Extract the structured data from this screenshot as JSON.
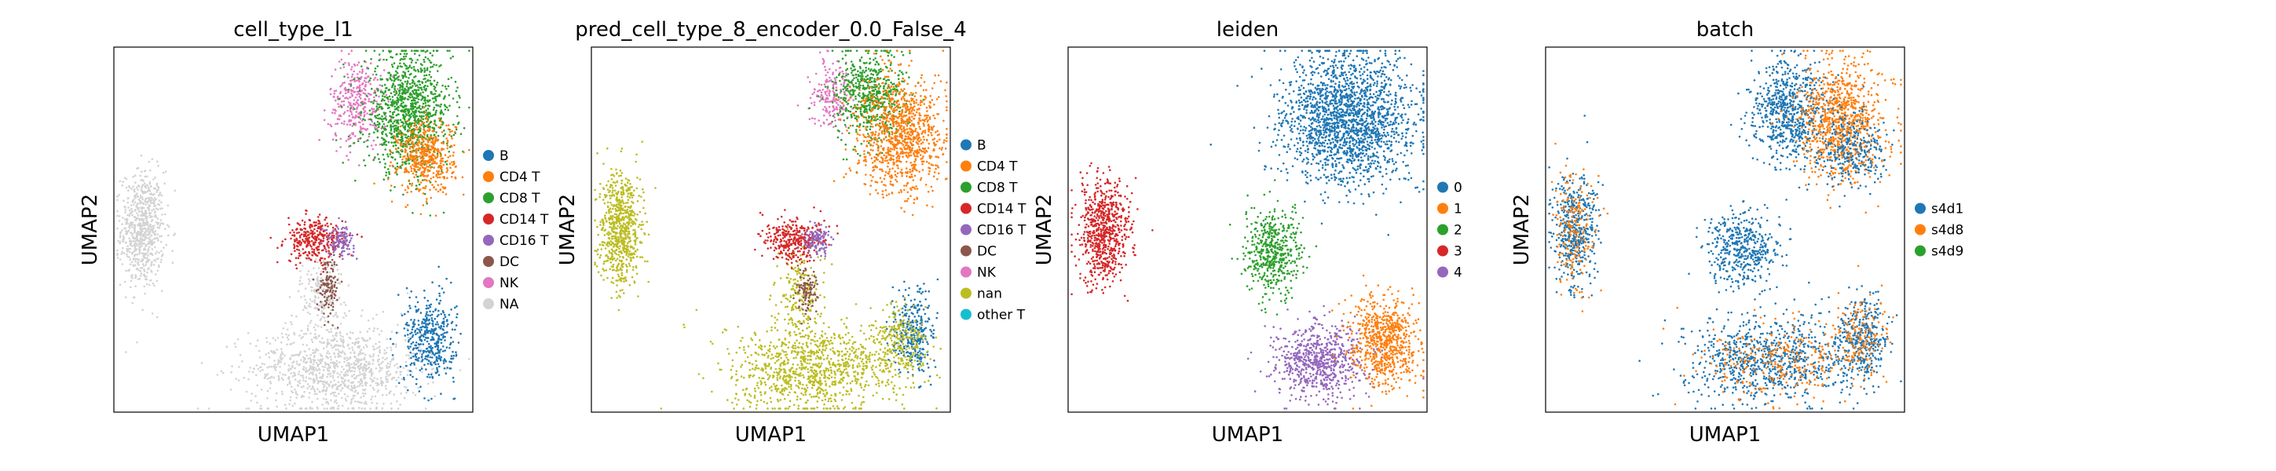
{
  "figure": {
    "legend_text_color": "#000000"
  },
  "chart_data": [
    {
      "type": "scatter",
      "title": "cell_type_l1",
      "xlabel": "UMAP1",
      "ylabel": "UMAP2",
      "legend": {
        "placement": "right-outside",
        "entries": [
          {
            "label": "B",
            "color": "#1f77b4"
          },
          {
            "label": "CD4 T",
            "color": "#ff7f0e"
          },
          {
            "label": "CD8 T",
            "color": "#2ca02c"
          },
          {
            "label": "CD14 T",
            "color": "#d62728"
          },
          {
            "label": "CD16 T",
            "color": "#9467bd"
          },
          {
            "label": "DC",
            "color": "#8c564b"
          },
          {
            "label": "NK",
            "color": "#e377c2"
          },
          {
            "label": "NA",
            "color": "#d3d3d3"
          }
        ]
      },
      "clusters": [
        {
          "label": "NA",
          "x": 0.08,
          "y": 0.5,
          "sx": 0.03,
          "sy": 0.08,
          "n": 700
        },
        {
          "label": "NA",
          "x": 0.62,
          "y": 0.12,
          "sx": 0.12,
          "sy": 0.06,
          "n": 1000
        },
        {
          "label": "NA",
          "x": 0.58,
          "y": 0.33,
          "sx": 0.03,
          "sy": 0.06,
          "n": 200
        },
        {
          "label": "NK",
          "x": 0.68,
          "y": 0.85,
          "sx": 0.04,
          "sy": 0.06,
          "n": 350
        },
        {
          "label": "CD8 T",
          "x": 0.82,
          "y": 0.82,
          "sx": 0.06,
          "sy": 0.08,
          "n": 1100
        },
        {
          "label": "CD4 T",
          "x": 0.87,
          "y": 0.7,
          "sx": 0.04,
          "sy": 0.05,
          "n": 500
        },
        {
          "label": "CD14 T",
          "x": 0.56,
          "y": 0.47,
          "sx": 0.04,
          "sy": 0.03,
          "n": 320
        },
        {
          "label": "CD16 T",
          "x": 0.63,
          "y": 0.47,
          "sx": 0.02,
          "sy": 0.02,
          "n": 120
        },
        {
          "label": "DC",
          "x": 0.6,
          "y": 0.35,
          "sx": 0.015,
          "sy": 0.04,
          "n": 120
        },
        {
          "label": "B",
          "x": 0.88,
          "y": 0.2,
          "sx": 0.035,
          "sy": 0.06,
          "n": 420
        }
      ]
    },
    {
      "type": "scatter",
      "title": "pred_cell_type_8_encoder_0.0_False_4",
      "xlabel": "UMAP1",
      "ylabel": "UMAP2",
      "legend": {
        "placement": "right-outside",
        "entries": [
          {
            "label": "B",
            "color": "#1f77b4"
          },
          {
            "label": "CD4 T",
            "color": "#ff7f0e"
          },
          {
            "label": "CD8 T",
            "color": "#2ca02c"
          },
          {
            "label": "CD14 T",
            "color": "#d62728"
          },
          {
            "label": "CD16 T",
            "color": "#9467bd"
          },
          {
            "label": "DC",
            "color": "#8c564b"
          },
          {
            "label": "NK",
            "color": "#e377c2"
          },
          {
            "label": "nan",
            "color": "#bcbd22"
          },
          {
            "label": "other T",
            "color": "#17becf"
          }
        ]
      },
      "clusters": [
        {
          "label": "nan",
          "x": 0.08,
          "y": 0.5,
          "sx": 0.03,
          "sy": 0.08,
          "n": 700
        },
        {
          "label": "nan",
          "x": 0.62,
          "y": 0.12,
          "sx": 0.12,
          "sy": 0.06,
          "n": 1000
        },
        {
          "label": "nan",
          "x": 0.58,
          "y": 0.33,
          "sx": 0.03,
          "sy": 0.06,
          "n": 200
        },
        {
          "label": "NK",
          "x": 0.67,
          "y": 0.86,
          "sx": 0.03,
          "sy": 0.05,
          "n": 200
        },
        {
          "label": "CD8 T",
          "x": 0.78,
          "y": 0.87,
          "sx": 0.05,
          "sy": 0.06,
          "n": 600
        },
        {
          "label": "CD4 T",
          "x": 0.86,
          "y": 0.76,
          "sx": 0.06,
          "sy": 0.08,
          "n": 1000
        },
        {
          "label": "CD14 T",
          "x": 0.56,
          "y": 0.47,
          "sx": 0.04,
          "sy": 0.03,
          "n": 320
        },
        {
          "label": "CD16 T",
          "x": 0.63,
          "y": 0.47,
          "sx": 0.02,
          "sy": 0.02,
          "n": 120
        },
        {
          "label": "DC",
          "x": 0.6,
          "y": 0.33,
          "sx": 0.015,
          "sy": 0.03,
          "n": 100
        },
        {
          "label": "B",
          "x": 0.9,
          "y": 0.22,
          "sx": 0.03,
          "sy": 0.06,
          "n": 300
        },
        {
          "label": "nan",
          "x": 0.86,
          "y": 0.18,
          "sx": 0.04,
          "sy": 0.05,
          "n": 250
        }
      ]
    },
    {
      "type": "scatter",
      "title": "leiden",
      "xlabel": "UMAP1",
      "ylabel": "UMAP2",
      "legend": {
        "placement": "right-outside",
        "entries": [
          {
            "label": "0",
            "color": "#1f77b4"
          },
          {
            "label": "1",
            "color": "#ff7f0e"
          },
          {
            "label": "2",
            "color": "#2ca02c"
          },
          {
            "label": "3",
            "color": "#d62728"
          },
          {
            "label": "4",
            "color": "#9467bd"
          }
        ]
      },
      "clusters": [
        {
          "label": "0",
          "x": 0.78,
          "y": 0.8,
          "sx": 0.09,
          "sy": 0.09,
          "n": 1900
        },
        {
          "label": "3",
          "x": 0.1,
          "y": 0.5,
          "sx": 0.035,
          "sy": 0.07,
          "n": 700
        },
        {
          "label": "2",
          "x": 0.57,
          "y": 0.44,
          "sx": 0.04,
          "sy": 0.06,
          "n": 500
        },
        {
          "label": "4",
          "x": 0.7,
          "y": 0.14,
          "sx": 0.06,
          "sy": 0.05,
          "n": 700
        },
        {
          "label": "1",
          "x": 0.88,
          "y": 0.19,
          "sx": 0.05,
          "sy": 0.06,
          "n": 700
        }
      ]
    },
    {
      "type": "scatter",
      "title": "batch",
      "xlabel": "UMAP1",
      "ylabel": "UMAP2",
      "legend": {
        "placement": "right-outside",
        "entries": [
          {
            "label": "s4d1",
            "color": "#1f77b4"
          },
          {
            "label": "s4d8",
            "color": "#ff7f0e"
          },
          {
            "label": "s4d9",
            "color": "#2ca02c"
          }
        ]
      },
      "clusters": [
        {
          "label": "s4d1",
          "x": 0.08,
          "y": 0.5,
          "sx": 0.03,
          "sy": 0.08,
          "n": 450
        },
        {
          "label": "s4d8",
          "x": 0.08,
          "y": 0.5,
          "sx": 0.03,
          "sy": 0.08,
          "n": 200
        },
        {
          "label": "s4d1",
          "x": 0.68,
          "y": 0.82,
          "sx": 0.05,
          "sy": 0.07,
          "n": 700
        },
        {
          "label": "s4d8",
          "x": 0.82,
          "y": 0.8,
          "sx": 0.06,
          "sy": 0.08,
          "n": 900
        },
        {
          "label": "s4d1",
          "x": 0.85,
          "y": 0.72,
          "sx": 0.05,
          "sy": 0.05,
          "n": 300
        },
        {
          "label": "s4d1",
          "x": 0.55,
          "y": 0.45,
          "sx": 0.05,
          "sy": 0.05,
          "n": 450
        },
        {
          "label": "s4d1",
          "x": 0.62,
          "y": 0.14,
          "sx": 0.11,
          "sy": 0.06,
          "n": 800
        },
        {
          "label": "s4d8",
          "x": 0.65,
          "y": 0.14,
          "sx": 0.1,
          "sy": 0.05,
          "n": 300
        },
        {
          "label": "s4d1",
          "x": 0.88,
          "y": 0.2,
          "sx": 0.035,
          "sy": 0.06,
          "n": 350
        },
        {
          "label": "s4d8",
          "x": 0.88,
          "y": 0.2,
          "sx": 0.035,
          "sy": 0.06,
          "n": 150
        }
      ]
    }
  ]
}
